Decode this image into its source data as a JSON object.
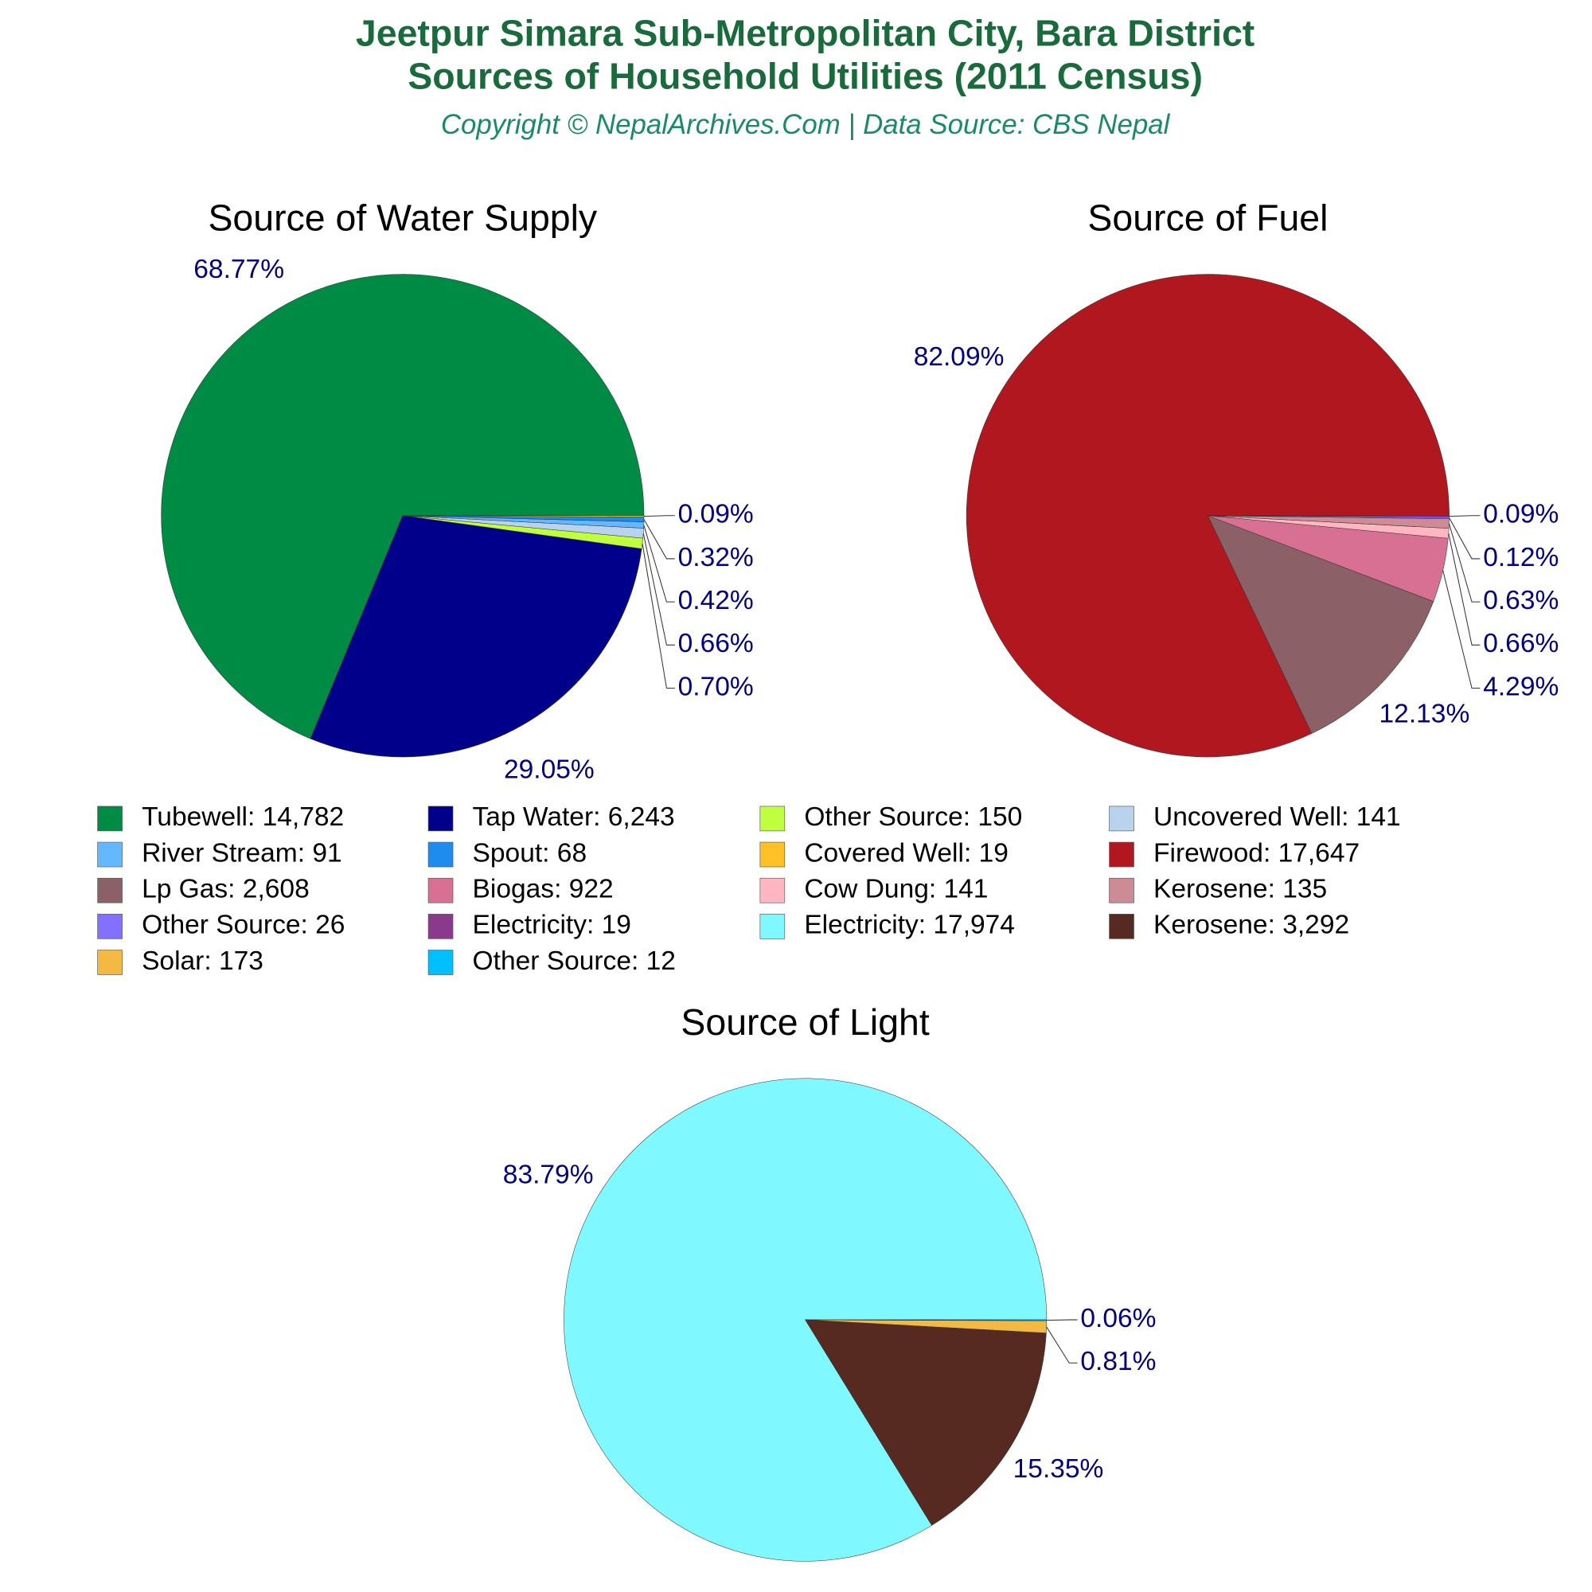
{
  "header": {
    "title_lines": [
      "Jeetpur Simara Sub-Metropolitan City, Bara District",
      "Sources of Household Utilities (2011 Census)"
    ],
    "subtitle": "Copyright © NepalArchives.Com | Data Source: CBS Nepal"
  },
  "chart_data": [
    {
      "type": "pie",
      "title": "Source of Water Supply",
      "categories": [
        "Tubewell: 14,782",
        "Tap Water: 6,243",
        "Other Source: 150",
        "Uncovered Well: 141",
        "River Stream: 91",
        "Spout: 68",
        "Covered Well: 19"
      ],
      "values": [
        68.77,
        29.05,
        0.7,
        0.66,
        0.42,
        0.32,
        0.09
      ],
      "value_labels": [
        "68.77%",
        "29.05%",
        "0.70%",
        "0.66%",
        "0.42%",
        "0.32%",
        "0.09%"
      ],
      "colors": [
        "#008b45",
        "#00008b",
        "#bfff3f",
        "#b9d3ee",
        "#63b8ff",
        "#1e8bee",
        "#ffc125"
      ]
    },
    {
      "type": "pie",
      "title": "Source of Fuel",
      "categories": [
        "Firewood: 17,647",
        "Lp Gas: 2,608",
        "Biogas: 922",
        "Cow Dung: 141",
        "Kerosene: 135",
        "Other Source: 26",
        "Electricity: 19"
      ],
      "values": [
        82.09,
        12.13,
        4.29,
        0.66,
        0.63,
        0.12,
        0.09
      ],
      "value_labels": [
        "82.09%",
        "12.13%",
        "4.29%",
        "0.66%",
        "0.63%",
        "0.12%",
        "0.09%"
      ],
      "colors": [
        "#b0171f",
        "#8b6066",
        "#d87093",
        "#ffb6c1",
        "#cd8c95",
        "#8470ff",
        "#8b3a8b"
      ]
    },
    {
      "type": "pie",
      "title": "Source of Light",
      "categories": [
        "Electricity: 17,974",
        "Kerosene: 3,292",
        "Solar: 173",
        "Other Source: 12"
      ],
      "values": [
        83.79,
        15.35,
        0.81,
        0.06
      ],
      "value_labels": [
        "83.79%",
        "15.35%",
        "0.81%",
        "0.06%"
      ],
      "colors": [
        "#7ff9ff",
        "#562a20",
        "#f4b942",
        "#00bfff"
      ]
    }
  ]
}
